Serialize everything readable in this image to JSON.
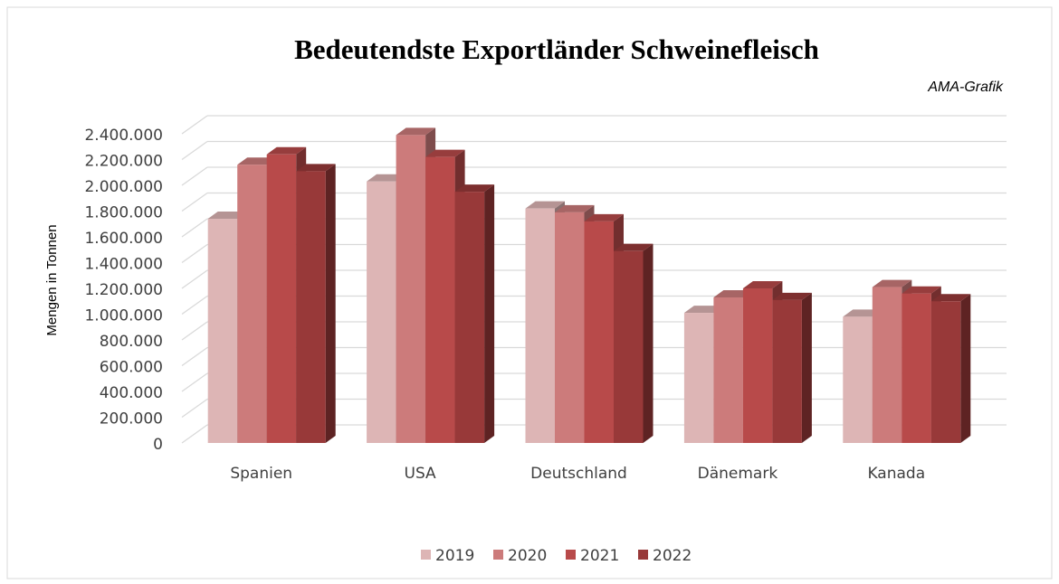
{
  "chart_data": {
    "type": "bar3d",
    "title": "Bedeutendste Exportländer  Schweinefleisch",
    "subtitle": "AMA-Grafik",
    "y_label": "Mengen in Tonnen",
    "categories": [
      "Spanien",
      "USA",
      "Deutschland",
      "Dänemark",
      "Kanada"
    ],
    "series": [
      {
        "name": "2019",
        "color": "#ddb5b5",
        "values": [
          1740000,
          2030000,
          1820000,
          1010000,
          980000
        ]
      },
      {
        "name": "2020",
        "color": "#cc7b7b",
        "values": [
          2160000,
          2390000,
          1790000,
          1130000,
          1210000
        ]
      },
      {
        "name": "2021",
        "color": "#b84a4a",
        "values": [
          2240000,
          2220000,
          1720000,
          1200000,
          1160000
        ]
      },
      {
        "name": "2022",
        "color": "#983939",
        "values": [
          2110000,
          1950000,
          1490000,
          1110000,
          1100000
        ]
      }
    ],
    "ylim": [
      0,
      2400000
    ],
    "yticks": [
      0,
      {
        "value": 200000,
        "label": "200.000"
      },
      {
        "value": 400000,
        "label": "400.000"
      },
      {
        "value": 600000,
        "label": "600.000"
      },
      {
        "value": 800000,
        "label": "800.000"
      },
      {
        "value": 1000000,
        "label": "1.000.000"
      },
      {
        "value": 1200000,
        "label": "1.200.000"
      },
      {
        "value": 1400000,
        "label": "1.400.000"
      },
      {
        "value": 1600000,
        "label": "1.600.000"
      },
      {
        "value": 1800000,
        "label": "1.800.000"
      },
      {
        "value": 2000000,
        "label": "2.000.000"
      },
      {
        "value": 2200000,
        "label": "2.200.000"
      },
      {
        "value": 2400000,
        "label": "2.400.000"
      }
    ],
    "grid": true,
    "legend": "bottom"
  }
}
